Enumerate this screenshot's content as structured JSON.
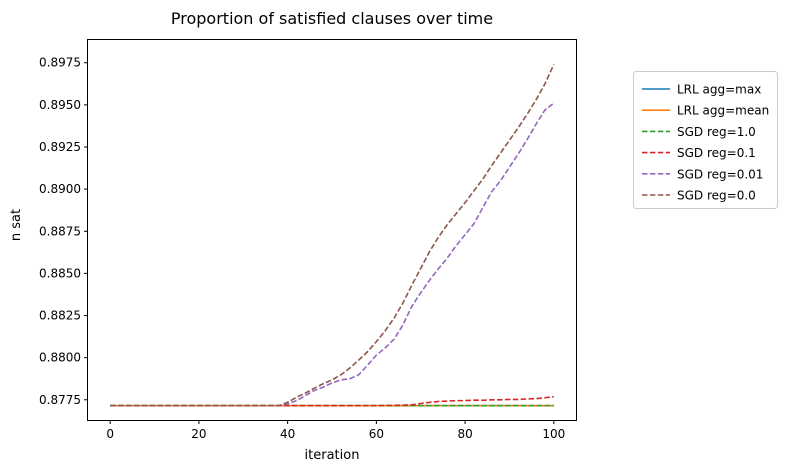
{
  "chart_data": {
    "type": "line",
    "title": "Proportion of satisfied clauses over time",
    "xlabel": "iteration",
    "ylabel": "n sat",
    "xlim": [
      -5,
      105
    ],
    "ylim": [
      0.8763,
      0.89885
    ],
    "xticks": [
      0,
      20,
      40,
      60,
      80,
      100
    ],
    "yticks": [
      0.8775,
      0.88,
      0.8825,
      0.885,
      0.8875,
      0.89,
      0.8925,
      0.895,
      0.8975
    ],
    "ytick_labels": [
      "0.8775",
      "0.8800",
      "0.8825",
      "0.8850",
      "0.8875",
      "0.8900",
      "0.8925",
      "0.8950",
      "0.8975"
    ],
    "grid": false,
    "legend_position": "outside right, upper",
    "x": [
      0,
      10,
      20,
      30,
      38,
      40,
      42,
      44,
      46,
      48,
      50,
      52,
      54,
      56,
      58,
      60,
      62,
      64,
      66,
      68,
      70,
      72,
      74,
      76,
      78,
      80,
      82,
      84,
      86,
      88,
      90,
      92,
      94,
      96,
      98,
      100
    ],
    "series": [
      {
        "name": "LRL agg=max",
        "color": "#1f77b4",
        "style": "solid",
        "values": [
          0.87715,
          0.87715,
          0.87715,
          0.87715,
          0.87715,
          0.87715,
          0.87715,
          0.87715,
          0.87715,
          0.87715,
          0.87715,
          0.87715,
          0.87715,
          0.87715,
          0.87715,
          0.87715,
          0.87715,
          0.87715,
          0.87715,
          0.87715,
          0.87715,
          0.87715,
          0.87715,
          0.87715,
          0.87715,
          0.87715,
          0.87715,
          0.87715,
          0.87715,
          0.87715,
          0.87715,
          0.87715,
          0.87715,
          0.87715,
          0.87715,
          0.87715
        ]
      },
      {
        "name": "LRL agg=mean",
        "color": "#ff7f0e",
        "style": "solid",
        "values": [
          0.87715,
          0.87715,
          0.87715,
          0.87715,
          0.87715,
          0.87715,
          0.87715,
          0.87715,
          0.87715,
          0.87715,
          0.87715,
          0.87715,
          0.87715,
          0.87715,
          0.87715,
          0.87715,
          0.87715,
          0.87715,
          0.87715,
          0.87715,
          0.87715,
          0.87715,
          0.87715,
          0.87715,
          0.87715,
          0.87715,
          0.87715,
          0.87715,
          0.87715,
          0.87715,
          0.87715,
          0.87715,
          0.87715,
          0.87715,
          0.87715,
          0.87715
        ]
      },
      {
        "name": "SGD reg=1.0",
        "color": "#2ca02c",
        "style": "dashed",
        "values": [
          0.87715,
          0.87715,
          0.87715,
          0.87715,
          0.87715,
          0.87715,
          0.87715,
          0.87715,
          0.87715,
          0.87715,
          0.87715,
          0.87715,
          0.87715,
          0.87715,
          0.87715,
          0.87715,
          0.87715,
          0.87715,
          0.87715,
          0.87715,
          0.87715,
          0.87715,
          0.87715,
          0.87715,
          0.87715,
          0.87715,
          0.87715,
          0.87715,
          0.87715,
          0.87715,
          0.87715,
          0.87715,
          0.87715,
          0.87715,
          0.87715,
          0.87715
        ]
      },
      {
        "name": "SGD reg=0.1",
        "color": "#d62728",
        "style": "dashed",
        "values": [
          0.87715,
          0.87715,
          0.87715,
          0.87715,
          0.87715,
          0.87715,
          0.87715,
          0.87715,
          0.87715,
          0.87715,
          0.87715,
          0.87715,
          0.87715,
          0.87715,
          0.87715,
          0.87715,
          0.87716,
          0.87717,
          0.87718,
          0.8772,
          0.87728,
          0.87735,
          0.8774,
          0.87742,
          0.87745,
          0.87745,
          0.87748,
          0.87747,
          0.8775,
          0.8775,
          0.87752,
          0.87752,
          0.87755,
          0.87757,
          0.87762,
          0.87768
        ]
      },
      {
        "name": "SGD reg=0.01",
        "color": "#9467bd",
        "style": "dashed",
        "values": [
          0.87715,
          0.87715,
          0.87715,
          0.87715,
          0.87715,
          0.87725,
          0.87745,
          0.87775,
          0.87805,
          0.87825,
          0.8785,
          0.87868,
          0.87875,
          0.87898,
          0.87955,
          0.88015,
          0.88058,
          0.8811,
          0.88195,
          0.88305,
          0.88385,
          0.8846,
          0.88528,
          0.88592,
          0.88665,
          0.8873,
          0.88795,
          0.8889,
          0.88985,
          0.8905,
          0.8913,
          0.8921,
          0.89295,
          0.89385,
          0.8947,
          0.8951
        ]
      },
      {
        "name": "SGD reg=0.0",
        "color": "#8c564b",
        "style": "dashed",
        "values": [
          0.87715,
          0.87715,
          0.87715,
          0.87715,
          0.87715,
          0.87735,
          0.87765,
          0.8779,
          0.87818,
          0.87845,
          0.87868,
          0.87898,
          0.87938,
          0.87985,
          0.88035,
          0.88095,
          0.8816,
          0.88235,
          0.88325,
          0.8843,
          0.8853,
          0.8863,
          0.88715,
          0.8879,
          0.88855,
          0.8892,
          0.8899,
          0.8906,
          0.8914,
          0.89215,
          0.8929,
          0.89365,
          0.89445,
          0.8953,
          0.89625,
          0.8974
        ]
      }
    ]
  }
}
